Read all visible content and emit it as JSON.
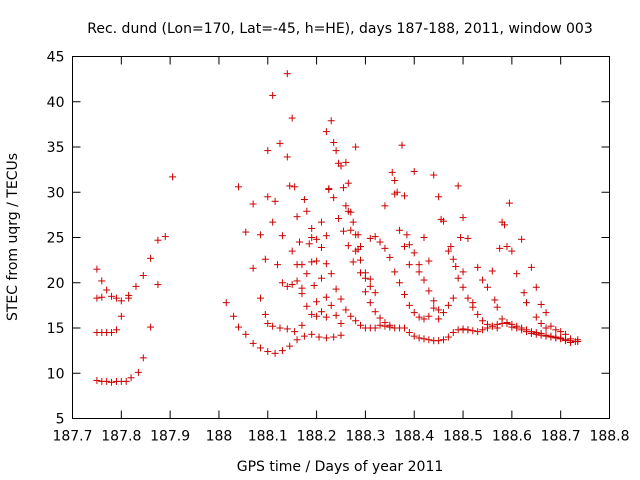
{
  "chart_data": {
    "type": "scatter",
    "title": "Rec. dund (Lon=170, Lat=-45, h=HE), days 187-188, 2011, window 003",
    "xlabel": "GPS time / Days of year 2011",
    "ylabel": "STEC from uqrg / TECUs",
    "xlim": [
      187.7,
      188.8
    ],
    "ylim": [
      5,
      45
    ],
    "xticks": [
      187.7,
      187.8,
      187.9,
      188.0,
      188.1,
      188.2,
      188.3,
      188.4,
      188.5,
      188.6,
      188.7,
      188.8
    ],
    "xtick_labels": [
      "187.7",
      "187.8",
      "187.9",
      "188",
      "188.1",
      "188.2",
      "188.3",
      "188.4",
      "188.5",
      "188.6",
      "188.7",
      "188.8"
    ],
    "yticks": [
      5,
      10,
      15,
      20,
      25,
      30,
      35,
      40,
      45
    ],
    "ytick_labels": [
      "5",
      "10",
      "15",
      "20",
      "25",
      "30",
      "35",
      "40",
      "45"
    ],
    "grid": false,
    "marker": "+",
    "color": "#cc0000",
    "points": [
      [
        187.75,
        9.2
      ],
      [
        187.76,
        9.1
      ],
      [
        187.77,
        9.1
      ],
      [
        187.78,
        9.0
      ],
      [
        187.79,
        9.1
      ],
      [
        187.8,
        9.1
      ],
      [
        187.81,
        9.1
      ],
      [
        187.82,
        9.5
      ],
      [
        187.835,
        10.1
      ],
      [
        187.845,
        11.7
      ],
      [
        187.86,
        15.1
      ],
      [
        187.75,
        14.5
      ],
      [
        187.76,
        14.5
      ],
      [
        187.77,
        14.5
      ],
      [
        187.78,
        14.5
      ],
      [
        187.79,
        14.8
      ],
      [
        187.8,
        16.3
      ],
      [
        187.815,
        18.3
      ],
      [
        187.83,
        19.6
      ],
      [
        187.845,
        20.8
      ],
      [
        187.86,
        22.7
      ],
      [
        187.875,
        24.7
      ],
      [
        187.89,
        25.1
      ],
      [
        187.905,
        31.7
      ],
      [
        187.75,
        21.5
      ],
      [
        187.76,
        20.2
      ],
      [
        187.77,
        19.2
      ],
      [
        187.78,
        18.5
      ],
      [
        187.79,
        18.3
      ],
      [
        187.8,
        18.0
      ],
      [
        187.815,
        18.6
      ],
      [
        187.75,
        18.3
      ],
      [
        187.76,
        18.4
      ],
      [
        187.875,
        19.8
      ],
      [
        188.015,
        17.8
      ],
      [
        188.03,
        16.3
      ],
      [
        188.04,
        15.1
      ],
      [
        188.055,
        14.3
      ],
      [
        188.07,
        13.3
      ],
      [
        188.085,
        12.8
      ],
      [
        188.1,
        12.4
      ],
      [
        188.115,
        12.2
      ],
      [
        188.13,
        12.5
      ],
      [
        188.145,
        13.0
      ],
      [
        188.16,
        13.7
      ],
      [
        188.175,
        14.1
      ],
      [
        188.19,
        14.3
      ],
      [
        188.205,
        14.0
      ],
      [
        188.22,
        13.9
      ],
      [
        188.235,
        14.0
      ],
      [
        188.25,
        14.2
      ],
      [
        188.04,
        30.6
      ],
      [
        188.055,
        25.6
      ],
      [
        188.07,
        21.6
      ],
      [
        188.085,
        18.3
      ],
      [
        188.095,
        16.5
      ],
      [
        188.1,
        15.5
      ],
      [
        188.11,
        15.2
      ],
      [
        188.125,
        15.0
      ],
      [
        188.14,
        14.9
      ],
      [
        188.155,
        14.6
      ],
      [
        188.17,
        15.3
      ],
      [
        188.07,
        28.7
      ],
      [
        188.085,
        25.3
      ],
      [
        188.095,
        22.6
      ],
      [
        188.1,
        29.5
      ],
      [
        188.11,
        26.7
      ],
      [
        188.12,
        22.0
      ],
      [
        188.13,
        20.0
      ],
      [
        188.14,
        19.6
      ],
      [
        188.15,
        19.8
      ],
      [
        188.16,
        20.2
      ],
      [
        188.17,
        18.8
      ],
      [
        188.18,
        17.4
      ],
      [
        188.19,
        16.5
      ],
      [
        188.2,
        16.3
      ],
      [
        188.1,
        34.6
      ],
      [
        188.11,
        40.7
      ],
      [
        188.115,
        29.0
      ],
      [
        188.125,
        35.4
      ],
      [
        188.13,
        25.2
      ],
      [
        188.14,
        33.9
      ],
      [
        188.145,
        30.7
      ],
      [
        188.15,
        38.2
      ],
      [
        188.155,
        30.6
      ],
      [
        188.16,
        27.3
      ],
      [
        188.165,
        24.5
      ],
      [
        188.17,
        22.0
      ],
      [
        188.175,
        29.2
      ],
      [
        188.18,
        27.9
      ],
      [
        188.185,
        24.3
      ],
      [
        188.19,
        22.3
      ],
      [
        188.195,
        19.7
      ],
      [
        188.2,
        17.9
      ],
      [
        188.21,
        16.8
      ],
      [
        188.22,
        16.2
      ],
      [
        188.14,
        43.1
      ],
      [
        188.15,
        23.5
      ],
      [
        188.16,
        22.0
      ],
      [
        188.17,
        19.4
      ],
      [
        188.18,
        21.0
      ],
      [
        188.19,
        25.0
      ],
      [
        188.2,
        22.4
      ],
      [
        188.21,
        20.5
      ],
      [
        188.22,
        18.4
      ],
      [
        188.23,
        17.5
      ],
      [
        188.24,
        16.4
      ],
      [
        188.25,
        15.5
      ],
      [
        188.19,
        26.0
      ],
      [
        188.2,
        24.8
      ],
      [
        188.21,
        26.7
      ],
      [
        188.22,
        25.2
      ],
      [
        188.225,
        30.3
      ],
      [
        188.22,
        36.7
      ],
      [
        188.23,
        37.9
      ],
      [
        188.235,
        35.5
      ],
      [
        188.24,
        34.6
      ],
      [
        188.245,
        33.2
      ],
      [
        188.25,
        32.9
      ],
      [
        188.255,
        30.5
      ],
      [
        188.26,
        28.5
      ],
      [
        188.265,
        27.9
      ],
      [
        188.27,
        27.8
      ],
      [
        188.275,
        26.7
      ],
      [
        188.28,
        25.3
      ],
      [
        188.285,
        23.7
      ],
      [
        188.29,
        22.5
      ],
      [
        188.3,
        21.1
      ],
      [
        188.31,
        20.4
      ],
      [
        188.225,
        30.4
      ],
      [
        188.235,
        29.4
      ],
      [
        188.245,
        27.1
      ],
      [
        188.255,
        25.7
      ],
      [
        188.265,
        24.1
      ],
      [
        188.275,
        22.3
      ],
      [
        188.28,
        35.0
      ],
      [
        188.285,
        25.3
      ],
      [
        188.29,
        24.0
      ],
      [
        188.3,
        20.5
      ],
      [
        188.31,
        19.6
      ],
      [
        188.32,
        18.9
      ],
      [
        188.26,
        33.3
      ],
      [
        188.265,
        31.0
      ],
      [
        188.27,
        25.8
      ],
      [
        188.28,
        23.5
      ],
      [
        188.29,
        21.1
      ],
      [
        188.3,
        19.0
      ],
      [
        188.31,
        17.8
      ],
      [
        188.32,
        16.8
      ],
      [
        188.33,
        16.1
      ],
      [
        188.34,
        15.6
      ],
      [
        188.35,
        15.3
      ],
      [
        188.21,
        23.9
      ],
      [
        188.22,
        22.1
      ],
      [
        188.23,
        21.0
      ],
      [
        188.24,
        19.3
      ],
      [
        188.25,
        18.2
      ],
      [
        188.26,
        17.0
      ],
      [
        188.27,
        16.3
      ],
      [
        188.28,
        15.8
      ],
      [
        188.29,
        15.3
      ],
      [
        188.3,
        15.0
      ],
      [
        188.31,
        15.0
      ],
      [
        188.32,
        15.0
      ],
      [
        188.33,
        15.3
      ],
      [
        188.31,
        24.9
      ],
      [
        188.32,
        25.1
      ],
      [
        188.33,
        24.5
      ],
      [
        188.34,
        23.8
      ],
      [
        188.35,
        22.8
      ],
      [
        188.36,
        21.2
      ],
      [
        188.37,
        20.0
      ],
      [
        188.38,
        18.7
      ],
      [
        188.39,
        17.5
      ],
      [
        188.4,
        16.7
      ],
      [
        188.41,
        16.2
      ],
      [
        188.42,
        16.0
      ],
      [
        188.43,
        16.3
      ],
      [
        188.44,
        17.2
      ],
      [
        188.34,
        28.5
      ],
      [
        188.355,
        32.2
      ],
      [
        188.36,
        31.3
      ],
      [
        188.365,
        30.0
      ],
      [
        188.375,
        35.2
      ],
      [
        188.38,
        29.6
      ],
      [
        188.385,
        25.3
      ],
      [
        188.39,
        24.2
      ],
      [
        188.4,
        23.3
      ],
      [
        188.41,
        22.0
      ],
      [
        188.42,
        20.3
      ],
      [
        188.43,
        19.1
      ],
      [
        188.44,
        18.0
      ],
      [
        188.45,
        17.0
      ],
      [
        188.36,
        29.8
      ],
      [
        188.37,
        25.8
      ],
      [
        188.38,
        24.0
      ],
      [
        188.39,
        22.0
      ],
      [
        188.4,
        32.3
      ],
      [
        188.41,
        21.2
      ],
      [
        188.42,
        25.0
      ],
      [
        188.43,
        22.4
      ],
      [
        188.44,
        31.9
      ],
      [
        188.45,
        29.5
      ],
      [
        188.455,
        27.0
      ],
      [
        188.46,
        26.8
      ],
      [
        188.47,
        23.5
      ],
      [
        188.475,
        24.0
      ],
      [
        188.48,
        22.6
      ],
      [
        188.485,
        21.8
      ],
      [
        188.49,
        30.7
      ],
      [
        188.495,
        25.0
      ],
      [
        188.5,
        27.2
      ],
      [
        188.34,
        15.2
      ],
      [
        188.35,
        15.1
      ],
      [
        188.36,
        15.0
      ],
      [
        188.37,
        15.0
      ],
      [
        188.38,
        15.0
      ],
      [
        188.39,
        14.5
      ],
      [
        188.4,
        14.1
      ],
      [
        188.41,
        13.9
      ],
      [
        188.42,
        13.8
      ],
      [
        188.43,
        13.7
      ],
      [
        188.44,
        13.6
      ],
      [
        188.45,
        13.6
      ],
      [
        188.46,
        13.7
      ],
      [
        188.47,
        14.0
      ],
      [
        188.48,
        14.5
      ],
      [
        188.49,
        14.8
      ],
      [
        188.5,
        14.8
      ],
      [
        188.51,
        14.8
      ],
      [
        188.45,
        16.0
      ],
      [
        188.46,
        16.7
      ],
      [
        188.47,
        17.5
      ],
      [
        188.48,
        18.3
      ],
      [
        188.49,
        20.5
      ],
      [
        188.5,
        19.5
      ],
      [
        188.51,
        18.3
      ],
      [
        188.52,
        17.3
      ],
      [
        188.53,
        16.5
      ],
      [
        188.54,
        15.8
      ],
      [
        188.55,
        15.4
      ],
      [
        188.56,
        15.2
      ],
      [
        188.57,
        15.0
      ],
      [
        188.5,
        21.2
      ],
      [
        188.51,
        24.9
      ],
      [
        188.52,
        17.8
      ],
      [
        188.53,
        21.7
      ],
      [
        188.54,
        20.3
      ],
      [
        188.55,
        19.5
      ],
      [
        188.56,
        21.3
      ],
      [
        188.565,
        18.1
      ],
      [
        188.57,
        17.3
      ],
      [
        188.575,
        23.8
      ],
      [
        188.58,
        26.7
      ],
      [
        188.585,
        26.4
      ],
      [
        188.59,
        24.0
      ],
      [
        188.595,
        28.8
      ],
      [
        188.6,
        23.5
      ],
      [
        188.61,
        21.0
      ],
      [
        188.62,
        24.8
      ],
      [
        188.625,
        18.9
      ],
      [
        188.63,
        17.8
      ],
      [
        188.64,
        21.7
      ],
      [
        188.65,
        19.5
      ],
      [
        188.66,
        17.6
      ],
      [
        188.67,
        16.7
      ],
      [
        188.5,
        14.9
      ],
      [
        188.51,
        14.8
      ],
      [
        188.52,
        14.7
      ],
      [
        188.53,
        14.6
      ],
      [
        188.54,
        14.8
      ],
      [
        188.55,
        15.0
      ],
      [
        188.56,
        15.2
      ],
      [
        188.57,
        15.4
      ],
      [
        188.58,
        15.5
      ],
      [
        188.59,
        15.5
      ],
      [
        188.6,
        15.4
      ],
      [
        188.61,
        15.2
      ],
      [
        188.62,
        15.0
      ],
      [
        188.63,
        14.8
      ],
      [
        188.64,
        14.6
      ],
      [
        188.65,
        14.5
      ],
      [
        188.66,
        14.4
      ],
      [
        188.67,
        14.2
      ],
      [
        188.68,
        14.1
      ],
      [
        188.69,
        14.0
      ],
      [
        188.7,
        13.9
      ],
      [
        188.71,
        13.7
      ],
      [
        188.72,
        13.6
      ],
      [
        188.73,
        13.5
      ],
      [
        188.58,
        16.0
      ],
      [
        188.59,
        15.6
      ],
      [
        188.6,
        15.1
      ],
      [
        188.61,
        15.0
      ],
      [
        188.62,
        14.8
      ],
      [
        188.63,
        14.6
      ],
      [
        188.64,
        14.4
      ],
      [
        188.65,
        14.3
      ],
      [
        188.66,
        14.2
      ],
      [
        188.67,
        14.1
      ],
      [
        188.68,
        14.0
      ],
      [
        188.69,
        13.9
      ],
      [
        188.7,
        13.8
      ],
      [
        188.71,
        13.6
      ],
      [
        188.72,
        13.4
      ],
      [
        188.735,
        13.5
      ],
      [
        188.65,
        16.2
      ],
      [
        188.66,
        15.5
      ],
      [
        188.67,
        15.0
      ],
      [
        188.68,
        15.2
      ],
      [
        188.69,
        14.8
      ],
      [
        188.7,
        14.6
      ],
      [
        188.71,
        14.3
      ],
      [
        188.72,
        13.8
      ],
      [
        188.735,
        13.7
      ]
    ]
  }
}
